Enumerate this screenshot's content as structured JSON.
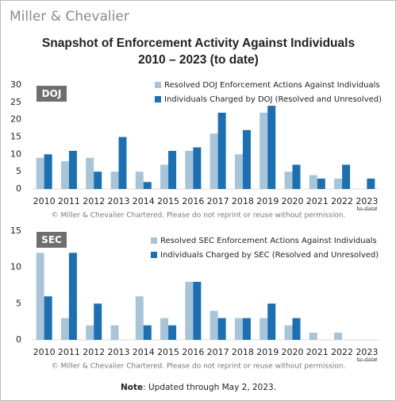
{
  "brand": "Miller & Chevalier",
  "title_lines": [
    "Snapshot of Enforcement Activity Against Individuals",
    "2010 – 2023 (to date)"
  ],
  "chart_data": [
    {
      "type": "bar",
      "badge": "DOJ",
      "categories": [
        "2010",
        "2011",
        "2012",
        "2013",
        "2014",
        "2015",
        "2016",
        "2017",
        "2018",
        "2019",
        "2020",
        "2021",
        "2022",
        "2023"
      ],
      "category_note": "to date",
      "series": [
        {
          "name": "Resolved DOJ Enforcement Actions Against Individuals",
          "color": "#a8c5d8",
          "values": [
            9,
            8,
            9,
            5,
            5,
            7,
            11,
            16,
            10,
            22,
            5,
            4,
            3,
            0
          ]
        },
        {
          "name": "Individuals Charged by DOJ (Resolved and Unresolved)",
          "color": "#1a70b3",
          "values": [
            10,
            11,
            5,
            15,
            2,
            11,
            12,
            22,
            17,
            24,
            7,
            3,
            7,
            3
          ]
        }
      ],
      "ylim": [
        0,
        30
      ],
      "yticks": [
        0,
        5,
        10,
        15,
        20,
        25,
        30
      ],
      "legend": "top-right",
      "footnote": "© Miller & Chevalier Chartered. Please do not reprint or reuse without permission."
    },
    {
      "type": "bar",
      "badge": "SEC",
      "categories": [
        "2010",
        "2011",
        "2012",
        "2013",
        "2014",
        "2015",
        "2016",
        "2017",
        "2018",
        "2019",
        "2020",
        "2021",
        "2022",
        "2023"
      ],
      "category_note": "to date",
      "series": [
        {
          "name": "Resolved SEC Enforcement Actions Against Individuals",
          "color": "#a8c5d8",
          "values": [
            12,
            3,
            2,
            2,
            6,
            3,
            8,
            4,
            3,
            3,
            2,
            1,
            1,
            0
          ]
        },
        {
          "name": "Individuals Charged by SEC (Resolved and Unresolved)",
          "color": "#1a70b3",
          "values": [
            6,
            12,
            5,
            0,
            2,
            2,
            8,
            3,
            3,
            5,
            3,
            0,
            0,
            0
          ]
        }
      ],
      "ylim": [
        0,
        15
      ],
      "yticks": [
        0,
        5,
        10,
        15
      ],
      "legend": "top-right",
      "footnote": "© Miller & Chevalier Chartered. Please do not reprint or reuse without permission."
    }
  ],
  "note_label": "Note",
  "note_text": ": Updated through May 2, 2023."
}
